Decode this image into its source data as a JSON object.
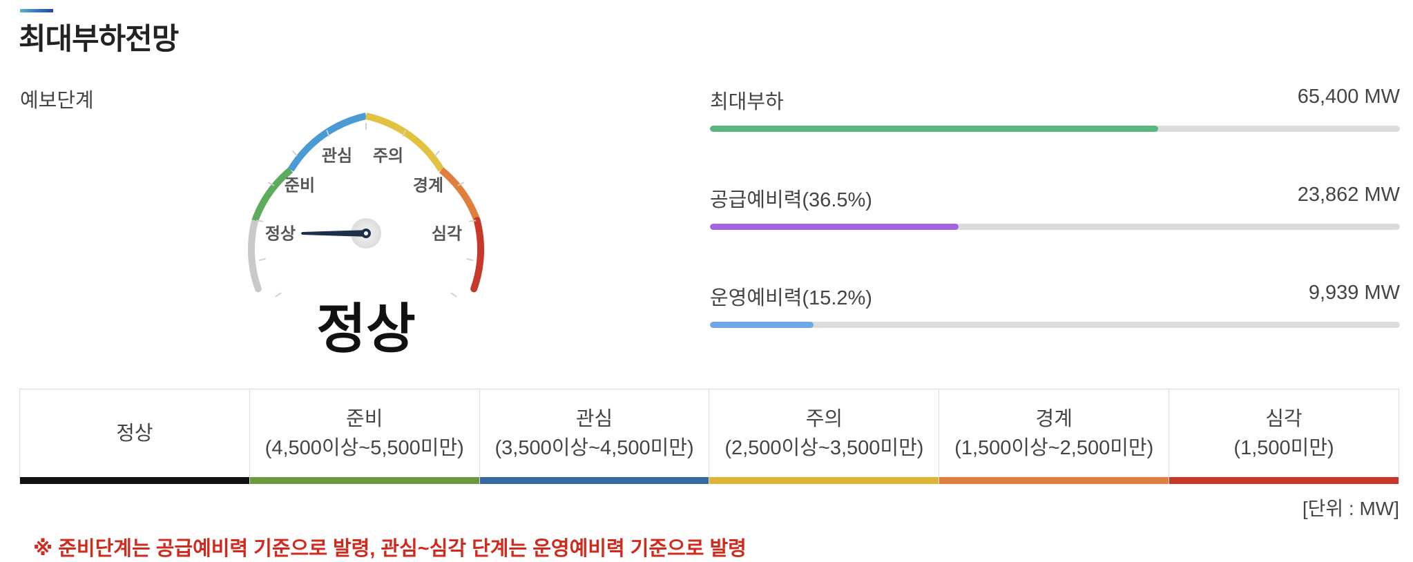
{
  "title": "최대부하전망",
  "forecast_label": "예보단계",
  "gauge": {
    "labels": [
      "정상",
      "준비",
      "관심",
      "주의",
      "경계",
      "심각"
    ],
    "current_status": "정상"
  },
  "metrics": [
    {
      "label": "최대부하",
      "value": "65,400 MW",
      "fill_percent": 65,
      "color": "#5bb57f"
    },
    {
      "label": "공급예비력(36.5%)",
      "value": "23,862 MW",
      "fill_percent": 36,
      "color": "#a366e0"
    },
    {
      "label": "운영예비력(15.2%)",
      "value": "9,939 MW",
      "fill_percent": 15,
      "color": "#6fa8e6"
    }
  ],
  "stages": [
    {
      "name": "정상",
      "range": "",
      "color": "#111111"
    },
    {
      "name": "준비",
      "range": "(4,500이상~5,500미만)",
      "color": "#6a9a3c"
    },
    {
      "name": "관심",
      "range": "(3,500이상~4,500미만)",
      "color": "#356a9f"
    },
    {
      "name": "주의",
      "range": "(2,500이상~3,500미만)",
      "color": "#e0b537"
    },
    {
      "name": "경계",
      "range": "(1,500이상~2,500미만)",
      "color": "#e07e3e"
    },
    {
      "name": "심각",
      "range": "(1,500미만)",
      "color": "#c7372a"
    }
  ],
  "unit": "[단위 : MW]",
  "notice": "※ 준비단계는 공급예비력 기준으로 발령, 관심~심각 단계는 운영예비력 기준으로 발령"
}
